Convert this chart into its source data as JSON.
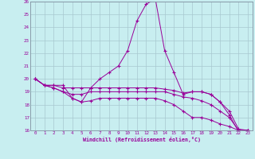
{
  "background_color": "#c8eef0",
  "grid_color": "#a8c8d0",
  "line_color": "#990099",
  "ylim": [
    16,
    26
  ],
  "xlim": [
    -0.5,
    23.5
  ],
  "yticks": [
    16,
    17,
    18,
    19,
    20,
    21,
    22,
    23,
    24,
    25,
    26
  ],
  "xticks": [
    0,
    1,
    2,
    3,
    4,
    5,
    6,
    7,
    8,
    9,
    10,
    11,
    12,
    13,
    14,
    15,
    16,
    17,
    18,
    19,
    20,
    21,
    22,
    23
  ],
  "xlabel": "Windchill (Refroidissement éolien,°C)",
  "line1_x": [
    0,
    1,
    2,
    3,
    4,
    5,
    6,
    7,
    8,
    9,
    10,
    11,
    12,
    13,
    14,
    15,
    16,
    17,
    18,
    19,
    20,
    21,
    22,
    23
  ],
  "line1_y": [
    20.0,
    19.5,
    19.5,
    19.5,
    18.5,
    18.2,
    19.3,
    20.0,
    20.5,
    21.0,
    22.2,
    24.5,
    25.8,
    26.2,
    22.2,
    20.5,
    18.8,
    19.0,
    19.0,
    18.8,
    18.2,
    17.2,
    15.9,
    16.0
  ],
  "line2_x": [
    0,
    1,
    2,
    3,
    4,
    5,
    6,
    7,
    8,
    9,
    10,
    11,
    12,
    13,
    14,
    15,
    16,
    17,
    18,
    19,
    20,
    21,
    22,
    23
  ],
  "line2_y": [
    20.0,
    19.5,
    19.5,
    19.3,
    19.3,
    19.3,
    19.3,
    19.3,
    19.3,
    19.3,
    19.3,
    19.3,
    19.3,
    19.3,
    19.2,
    19.1,
    18.9,
    19.0,
    19.0,
    18.8,
    18.2,
    17.5,
    16.1,
    16.0
  ],
  "line3_x": [
    0,
    1,
    2,
    3,
    4,
    5,
    6,
    7,
    8,
    9,
    10,
    11,
    12,
    13,
    14,
    15,
    16,
    17,
    18,
    19,
    20,
    21,
    22,
    23
  ],
  "line3_y": [
    20.0,
    19.5,
    19.3,
    19.0,
    18.8,
    18.8,
    19.0,
    19.0,
    19.0,
    19.0,
    19.0,
    19.0,
    19.0,
    19.0,
    19.0,
    18.8,
    18.6,
    18.5,
    18.3,
    18.0,
    17.5,
    17.0,
    16.0,
    16.0
  ],
  "line4_x": [
    0,
    1,
    2,
    3,
    4,
    5,
    6,
    7,
    8,
    9,
    10,
    11,
    12,
    13,
    14,
    15,
    16,
    17,
    18,
    19,
    20,
    21,
    22,
    23
  ],
  "line4_y": [
    20.0,
    19.5,
    19.3,
    19.0,
    18.5,
    18.2,
    18.3,
    18.5,
    18.5,
    18.5,
    18.5,
    18.5,
    18.5,
    18.5,
    18.3,
    18.0,
    17.5,
    17.0,
    17.0,
    16.8,
    16.5,
    16.3,
    16.0,
    16.0
  ]
}
